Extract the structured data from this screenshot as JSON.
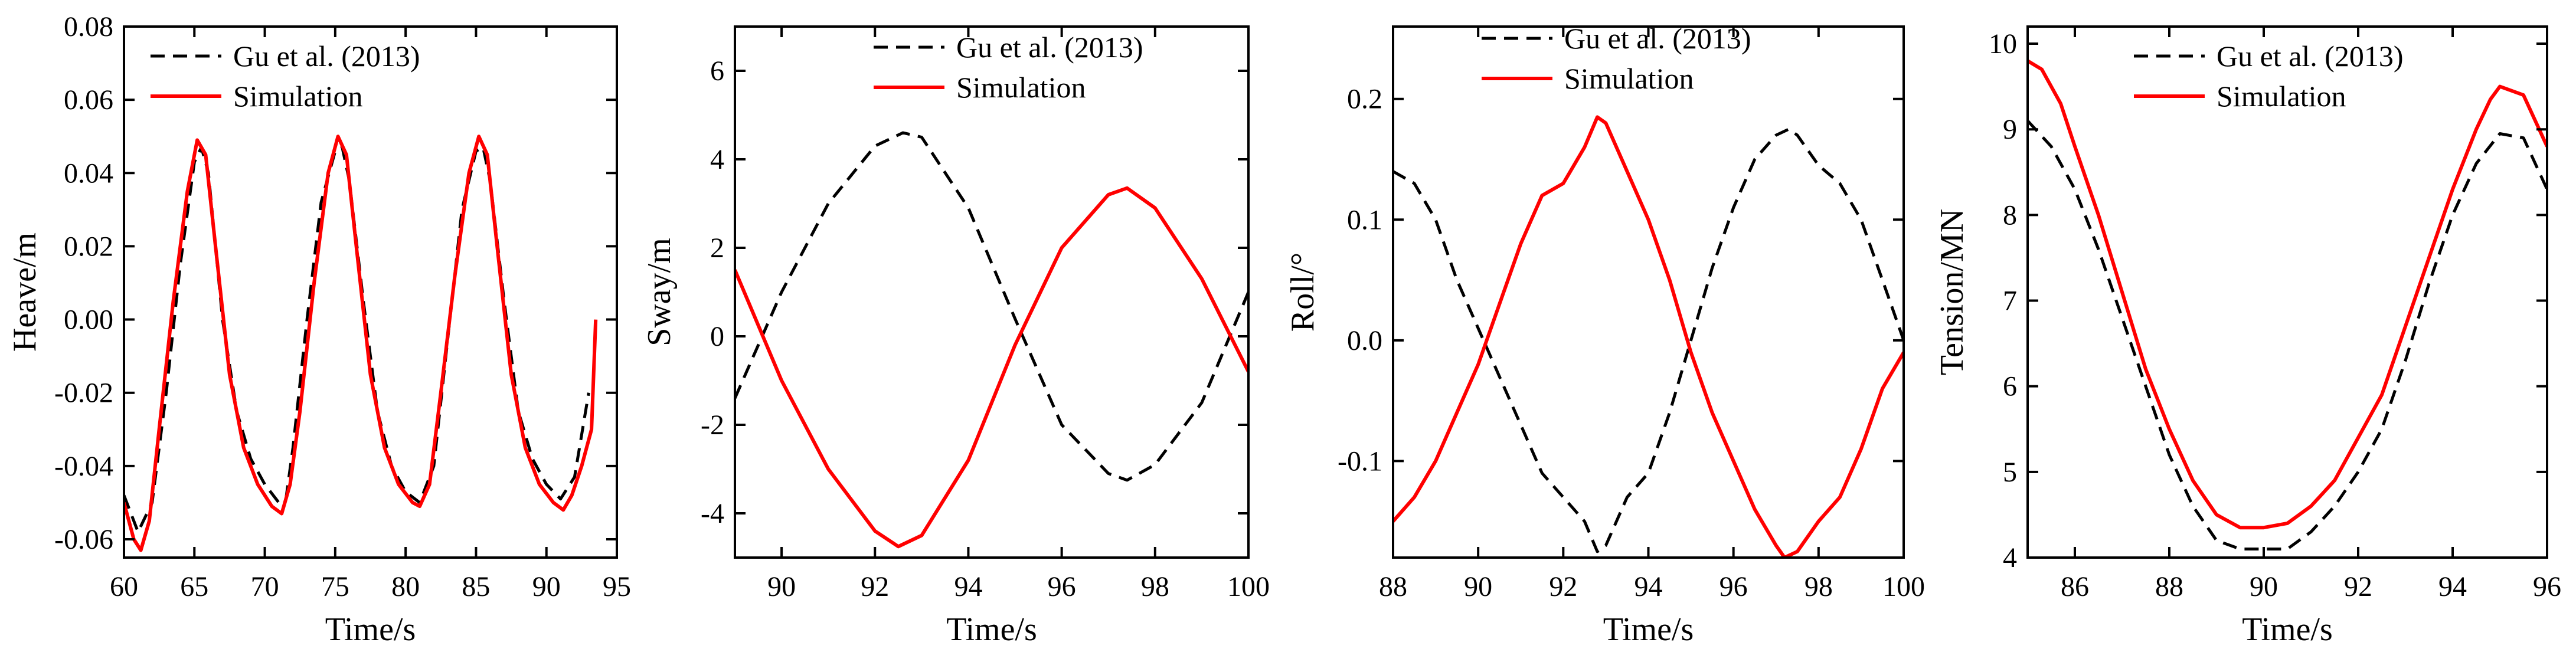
{
  "figure": {
    "colors": {
      "reference": "#000000",
      "simulation": "#ff0000"
    },
    "legend": {
      "reference_label": "Gu et al. (2013)",
      "simulation_label": "Simulation"
    }
  },
  "chart_data": [
    {
      "type": "line",
      "title": "",
      "xlabel": "Time/s",
      "ylabel": "Heave/m",
      "xlim": [
        60,
        95
      ],
      "ylim": [
        -0.065,
        0.08
      ],
      "xticks": [
        60,
        65,
        70,
        75,
        80,
        85,
        90,
        95
      ],
      "xtick_labels": [
        "60",
        "65",
        "70",
        "75",
        "80",
        "85",
        "90",
        "95"
      ],
      "yticks": [
        -0.06,
        -0.04,
        -0.02,
        0.0,
        0.02,
        0.04,
        0.06,
        0.08
      ],
      "ytick_labels": [
        "-0.06",
        "-0.04",
        "-0.02",
        "0.00",
        "0.02",
        "0.04",
        "0.06",
        "0.08"
      ],
      "legend_position": "top-left",
      "series": [
        {
          "name": "Gu et al. (2013)",
          "style": "dashed",
          "x": [
            60,
            61,
            62,
            63,
            64,
            65,
            65.5,
            66,
            67,
            68,
            69,
            70,
            71,
            71.5,
            72,
            73,
            74,
            75,
            75.5,
            76,
            77,
            78,
            79,
            80,
            81,
            82,
            83,
            84,
            85,
            85.5,
            86,
            87,
            88,
            89,
            90,
            91,
            92,
            93
          ],
          "y": [
            -0.048,
            -0.058,
            -0.05,
            -0.02,
            0.015,
            0.043,
            0.047,
            0.04,
            0.0,
            -0.025,
            -0.038,
            -0.045,
            -0.05,
            -0.049,
            -0.035,
            0.0,
            0.032,
            0.046,
            0.047,
            0.038,
            0.005,
            -0.025,
            -0.04,
            -0.047,
            -0.05,
            -0.04,
            -0.005,
            0.03,
            0.046,
            0.047,
            0.038,
            0.005,
            -0.025,
            -0.038,
            -0.045,
            -0.049,
            -0.043,
            -0.02
          ]
        },
        {
          "name": "Simulation",
          "style": "solid",
          "x": [
            60,
            60.7,
            61.2,
            61.8,
            62.5,
            63.5,
            64.5,
            65.2,
            65.8,
            66.5,
            67.5,
            68.5,
            69.5,
            70.5,
            71.2,
            71.8,
            72.5,
            73.5,
            74.5,
            75.2,
            75.8,
            76.5,
            77.5,
            78.5,
            79.5,
            80.5,
            81,
            81.7,
            82.5,
            83.5,
            84.5,
            85.2,
            85.8,
            86.5,
            87.5,
            88.5,
            89.5,
            90.5,
            91.2,
            91.8,
            92.5,
            93.2,
            93.5
          ],
          "y": [
            -0.05,
            -0.06,
            -0.063,
            -0.055,
            -0.03,
            0.005,
            0.035,
            0.049,
            0.045,
            0.02,
            -0.015,
            -0.035,
            -0.045,
            -0.051,
            -0.053,
            -0.045,
            -0.025,
            0.01,
            0.04,
            0.05,
            0.045,
            0.02,
            -0.015,
            -0.035,
            -0.045,
            -0.05,
            -0.051,
            -0.045,
            -0.02,
            0.012,
            0.04,
            0.05,
            0.045,
            0.02,
            -0.015,
            -0.035,
            -0.045,
            -0.05,
            -0.052,
            -0.048,
            -0.04,
            -0.03,
            0.0
          ]
        }
      ]
    },
    {
      "type": "line",
      "title": "",
      "xlabel": "Time/s",
      "ylabel": "Sway/m",
      "xlim": [
        89,
        100
      ],
      "ylim": [
        -5,
        7
      ],
      "xticks": [
        90,
        92,
        94,
        96,
        98,
        100
      ],
      "xtick_labels": [
        "90",
        "92",
        "94",
        "96",
        "98",
        "100"
      ],
      "yticks": [
        -4,
        -2,
        0,
        2,
        4,
        6
      ],
      "ytick_labels": [
        "-4",
        "-2",
        "0",
        "2",
        "4",
        "6"
      ],
      "legend_position": "top-right",
      "series": [
        {
          "name": "Gu et al. (2013)",
          "style": "dashed",
          "x": [
            89,
            90,
            91,
            92,
            92.6,
            93,
            94,
            95,
            96,
            97,
            97.4,
            98,
            99,
            100
          ],
          "y": [
            -1.4,
            1.0,
            3.0,
            4.3,
            4.6,
            4.5,
            2.9,
            0.4,
            -2.0,
            -3.1,
            -3.25,
            -2.9,
            -1.5,
            1.0
          ]
        },
        {
          "name": "Simulation",
          "style": "solid",
          "x": [
            89,
            90,
            91,
            92,
            92.5,
            93,
            94,
            95,
            96,
            97,
            97.4,
            98,
            99,
            100
          ],
          "y": [
            1.5,
            -1.0,
            -3.0,
            -4.4,
            -4.75,
            -4.5,
            -2.8,
            -0.2,
            2.0,
            3.2,
            3.35,
            2.9,
            1.3,
            -0.8
          ]
        }
      ]
    },
    {
      "type": "line",
      "title": "",
      "xlabel": "Time/s",
      "ylabel": "Roll/°",
      "xlim": [
        88,
        100
      ],
      "ylim": [
        -0.18,
        0.26
      ],
      "xticks": [
        88,
        90,
        92,
        94,
        96,
        98,
        100
      ],
      "xtick_labels": [
        "88",
        "90",
        "92",
        "94",
        "96",
        "98",
        "100"
      ],
      "yticks": [
        -0.1,
        0.0,
        0.1,
        0.2
      ],
      "ytick_labels": [
        "-0.1",
        "0.0",
        "0.1",
        "0.2"
      ],
      "legend_position": "top-right",
      "series": [
        {
          "name": "Gu et al. (2013)",
          "style": "dashed",
          "x": [
            88,
            88.5,
            89,
            89.5,
            90,
            90.5,
            91,
            91.5,
            92,
            92.5,
            92.8,
            93,
            93.5,
            94,
            94.5,
            95,
            95.5,
            96,
            96.5,
            97,
            97.3,
            97.5,
            98,
            98.5,
            99,
            99.5,
            100
          ],
          "y": [
            0.14,
            0.13,
            0.1,
            0.05,
            0.01,
            -0.03,
            -0.07,
            -0.11,
            -0.13,
            -0.15,
            -0.175,
            -0.17,
            -0.13,
            -0.11,
            -0.06,
            0.0,
            0.06,
            0.11,
            0.15,
            0.17,
            0.175,
            0.17,
            0.145,
            0.13,
            0.1,
            0.05,
            0.0
          ]
        },
        {
          "name": "Simulation",
          "style": "solid",
          "x": [
            88,
            88.5,
            89,
            89.5,
            90,
            90.5,
            91,
            91.5,
            92,
            92.5,
            92.8,
            93,
            93.5,
            94,
            94.5,
            95,
            95.5,
            96,
            96.5,
            97,
            97.2,
            97.5,
            98,
            98.5,
            99,
            99.5,
            100
          ],
          "y": [
            -0.15,
            -0.13,
            -0.1,
            -0.06,
            -0.02,
            0.03,
            0.08,
            0.12,
            0.13,
            0.16,
            0.185,
            0.18,
            0.14,
            0.1,
            0.05,
            -0.01,
            -0.06,
            -0.1,
            -0.14,
            -0.17,
            -0.18,
            -0.175,
            -0.15,
            -0.13,
            -0.09,
            -0.04,
            -0.01
          ]
        }
      ]
    },
    {
      "type": "line",
      "title": "",
      "xlabel": "Time/s",
      "ylabel": "Tension/MN",
      "xlim": [
        85,
        96
      ],
      "ylim": [
        4,
        10.2
      ],
      "xticks": [
        86,
        88,
        90,
        92,
        94,
        96
      ],
      "xtick_labels": [
        "86",
        "88",
        "90",
        "92",
        "94",
        "96"
      ],
      "yticks": [
        4,
        5,
        6,
        7,
        8,
        9,
        10
      ],
      "ytick_labels": [
        "4",
        "5",
        "6",
        "7",
        "8",
        "9",
        "10"
      ],
      "legend_position": "top-right",
      "series": [
        {
          "name": "Gu et al. (2013)",
          "style": "dashed",
          "x": [
            85,
            85.5,
            86,
            86.5,
            87,
            87.5,
            88,
            88.5,
            89,
            89.5,
            90,
            90.5,
            91,
            91.5,
            92,
            92.5,
            93,
            93.5,
            94,
            94.5,
            95,
            95.5,
            96
          ],
          "y": [
            9.1,
            8.8,
            8.3,
            7.6,
            6.8,
            6.0,
            5.2,
            4.6,
            4.2,
            4.1,
            4.1,
            4.1,
            4.3,
            4.6,
            5.0,
            5.5,
            6.3,
            7.2,
            8.0,
            8.6,
            8.95,
            8.9,
            8.3
          ]
        },
        {
          "name": "Simulation",
          "style": "solid",
          "x": [
            85,
            85.3,
            85.7,
            86,
            86.5,
            87,
            87.5,
            88,
            88.5,
            89,
            89.5,
            90,
            90.5,
            91,
            91.5,
            92,
            92.5,
            93,
            93.5,
            94,
            94.5,
            94.8,
            95,
            95.5,
            96
          ],
          "y": [
            9.8,
            9.7,
            9.3,
            8.8,
            8.0,
            7.1,
            6.2,
            5.5,
            4.9,
            4.5,
            4.35,
            4.35,
            4.4,
            4.6,
            4.9,
            5.4,
            5.9,
            6.7,
            7.5,
            8.3,
            9.0,
            9.35,
            9.5,
            9.4,
            8.8
          ]
        }
      ]
    }
  ]
}
